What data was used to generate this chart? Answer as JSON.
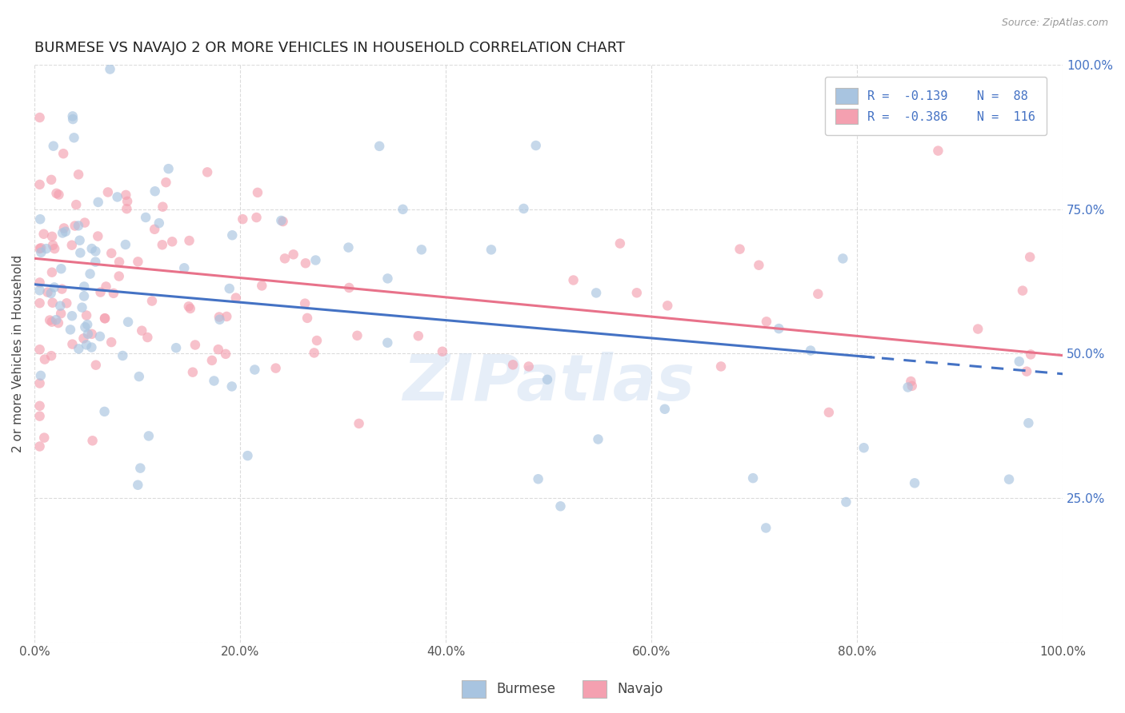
{
  "title": "BURMESE VS NAVAJO 2 OR MORE VEHICLES IN HOUSEHOLD CORRELATION CHART",
  "source": "Source: ZipAtlas.com",
  "ylabel": "2 or more Vehicles in Household",
  "burmese_color": "#a8c4e0",
  "navajo_color": "#f4a0b0",
  "burmese_line_color": "#4472c4",
  "navajo_line_color": "#e8728a",
  "watermark": "ZIPatlas",
  "legend_R_burmese": "-0.139",
  "legend_N_burmese": "88",
  "legend_R_navajo": "-0.386",
  "legend_N_navajo": "116",
  "xlim": [
    0,
    100
  ],
  "ylim": [
    0,
    100
  ],
  "xtick_vals": [
    0,
    20,
    40,
    60,
    80,
    100
  ],
  "xtick_labels": [
    "0.0%",
    "20.0%",
    "40.0%",
    "60.0%",
    "80.0%",
    "100.0%"
  ],
  "ytick_vals": [
    0,
    25,
    50,
    75,
    100
  ],
  "ytick_labels_right": [
    "",
    "25.0%",
    "50.0%",
    "75.0%",
    "100.0%"
  ],
  "grid_color": "#cccccc",
  "bg_color": "#ffffff",
  "title_fontsize": 13,
  "axis_label_fontsize": 11,
  "tick_fontsize": 11,
  "marker_size": 9,
  "marker_alpha": 0.65,
  "line_width": 2.2,
  "burmese_line_intercept": 62.0,
  "burmese_line_slope": -0.155,
  "navajo_line_intercept": 66.5,
  "navajo_line_slope": -0.168,
  "tick_color": "#4472c4"
}
